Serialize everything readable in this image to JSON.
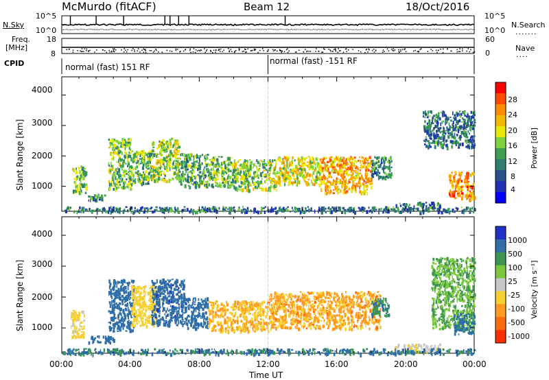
{
  "header": {
    "station": "McMurdo (fitACF)",
    "beam": "Beam 12",
    "date": "18/Oct/2016"
  },
  "top_panels": {
    "nsky_label": "N.Sky",
    "nsearch_label": "N.Search",
    "nsky_ticks": [
      "10^5",
      "10^0"
    ],
    "nsearch_ticks": [
      "10^5",
      "10^0"
    ],
    "freq_label_1": "Freq.",
    "freq_label_2": "[MHz]",
    "freq_ticks": [
      "18",
      "8"
    ],
    "nave_label": "Nave",
    "nave_ticks": [
      "60",
      "0"
    ],
    "cpid_label": "CPID",
    "cpid_segments": [
      "normal (fast) 151 RF",
      "normal (fast) -151 RF"
    ]
  },
  "power_colorbar": {
    "label": "Power [dB]",
    "ticks": [
      "28",
      "24",
      "20",
      "16",
      "12",
      "8",
      "4"
    ],
    "colors": [
      "#ff0000",
      "#ff4b00",
      "#ff8c00",
      "#f5b800",
      "#e8e800",
      "#7fd23c",
      "#3ca050",
      "#2f7d6e",
      "#27508c",
      "#1e32b4",
      "#0000ff"
    ]
  },
  "velocity_colorbar": {
    "label": "Velocity [m s⁻¹]",
    "ticks": [
      "1000",
      "500",
      "100",
      "25",
      "-25",
      "-100",
      "-500",
      "-1000"
    ],
    "colors": [
      "#1e32c8",
      "#2f6ea8",
      "#3c9650",
      "#7cc83c",
      "#c8c8c8",
      "#f5d030",
      "#ff9a1e",
      "#ff6a10",
      "#ff3000"
    ]
  },
  "chart_data": [
    {
      "type": "heatmap",
      "title": "",
      "xlabel": "Time UT",
      "ylabel": "Slant Range [km]",
      "x_ticks": [
        "00:00",
        "04:00",
        "08:00",
        "12:00",
        "16:00",
        "20:00",
        "00:00"
      ],
      "y_ticks": [
        1000,
        2000,
        3000,
        4000
      ],
      "xlim_hours": [
        0,
        24
      ],
      "ylim_km": [
        180,
        4600
      ],
      "colorbar": "Power [dB]",
      "clim": [
        0,
        30
      ],
      "scatter_regions": [
        {
          "x_hours": [
            0.6,
            1.4
          ],
          "y_km": [
            800,
            1700
          ],
          "value_db": 14
        },
        {
          "x_hours": [
            1.5,
            2.5
          ],
          "y_km": [
            560,
            760
          ],
          "value_db": 10
        },
        {
          "x_hours": [
            2.7,
            4.0
          ],
          "y_km": [
            900,
            2600
          ],
          "value_db": 14
        },
        {
          "x_hours": [
            4.0,
            5.2
          ],
          "y_km": [
            1100,
            2200
          ],
          "value_db": 13
        },
        {
          "x_hours": [
            5.2,
            6.8
          ],
          "y_km": [
            1200,
            2600
          ],
          "value_db": 16
        },
        {
          "x_hours": [
            6.8,
            8.5
          ],
          "y_km": [
            1000,
            2100
          ],
          "value_db": 12
        },
        {
          "x_hours": [
            8.5,
            10.0
          ],
          "y_km": [
            1000,
            2000
          ],
          "value_db": 14
        },
        {
          "x_hours": [
            10.0,
            12.5
          ],
          "y_km": [
            900,
            1900
          ],
          "value_db": 15
        },
        {
          "x_hours": [
            12.5,
            15.0
          ],
          "y_km": [
            1100,
            2000
          ],
          "value_db": 18
        },
        {
          "x_hours": [
            15.0,
            18.0
          ],
          "y_km": [
            800,
            2000
          ],
          "value_db": 22
        },
        {
          "x_hours": [
            18.0,
            19.2
          ],
          "y_km": [
            1300,
            2000
          ],
          "value_db": 10
        },
        {
          "x_hours": [
            19.4,
            22.0
          ],
          "y_km": [
            250,
            500
          ],
          "value_db": 8
        },
        {
          "x_hours": [
            22.5,
            24.0
          ],
          "y_km": [
            600,
            1500
          ],
          "value_db": 24
        },
        {
          "x_hours": [
            21.0,
            24.0
          ],
          "y_km": [
            2300,
            3500
          ],
          "value_db": 8
        },
        {
          "x_hours": [
            0.0,
            24.0
          ],
          "y_km": [
            180,
            350
          ],
          "value_db": 8
        }
      ]
    },
    {
      "type": "heatmap",
      "title": "",
      "xlabel": "Time UT",
      "ylabel": "Slant Range [km]",
      "x_ticks": [
        "00:00",
        "04:00",
        "08:00",
        "12:00",
        "16:00",
        "20:00",
        "00:00"
      ],
      "y_ticks": [
        1000,
        2000,
        3000,
        4000
      ],
      "xlim_hours": [
        0,
        24
      ],
      "ylim_km": [
        180,
        4600
      ],
      "colorbar": "Velocity [m s⁻¹]",
      "clim": [
        -1000,
        1000
      ],
      "scatter_regions": [
        {
          "x_hours": [
            0.5,
            1.3
          ],
          "y_km": [
            700,
            1600
          ],
          "value_ms": -150
        },
        {
          "x_hours": [
            1.5,
            3.0
          ],
          "y_km": [
            560,
            760
          ],
          "value_ms": 200
        },
        {
          "x_hours": [
            2.7,
            4.2
          ],
          "y_km": [
            900,
            2600
          ],
          "value_ms": 300
        },
        {
          "x_hours": [
            4.0,
            5.5
          ],
          "y_km": [
            1100,
            2400
          ],
          "value_ms": -200
        },
        {
          "x_hours": [
            5.2,
            7.2
          ],
          "y_km": [
            1100,
            2600
          ],
          "value_ms": 350
        },
        {
          "x_hours": [
            7.2,
            8.5
          ],
          "y_km": [
            1000,
            2000
          ],
          "value_ms": 200
        },
        {
          "x_hours": [
            8.5,
            12.0
          ],
          "y_km": [
            900,
            1900
          ],
          "value_ms": -300
        },
        {
          "x_hours": [
            12.0,
            18.5
          ],
          "y_km": [
            1000,
            2200
          ],
          "value_ms": -350
        },
        {
          "x_hours": [
            18.0,
            19.0
          ],
          "y_km": [
            1400,
            2000
          ],
          "value_ms": 100
        },
        {
          "x_hours": [
            19.3,
            22.0
          ],
          "y_km": [
            250,
            500
          ],
          "value_ms": -80
        },
        {
          "x_hours": [
            21.5,
            24.0
          ],
          "y_km": [
            1000,
            3300
          ],
          "value_ms": 20
        },
        {
          "x_hours": [
            22.8,
            24.0
          ],
          "y_km": [
            800,
            1500
          ],
          "value_ms": 150
        },
        {
          "x_hours": [
            0.0,
            24.0
          ],
          "y_km": [
            180,
            350
          ],
          "value_ms": 120
        }
      ]
    }
  ]
}
